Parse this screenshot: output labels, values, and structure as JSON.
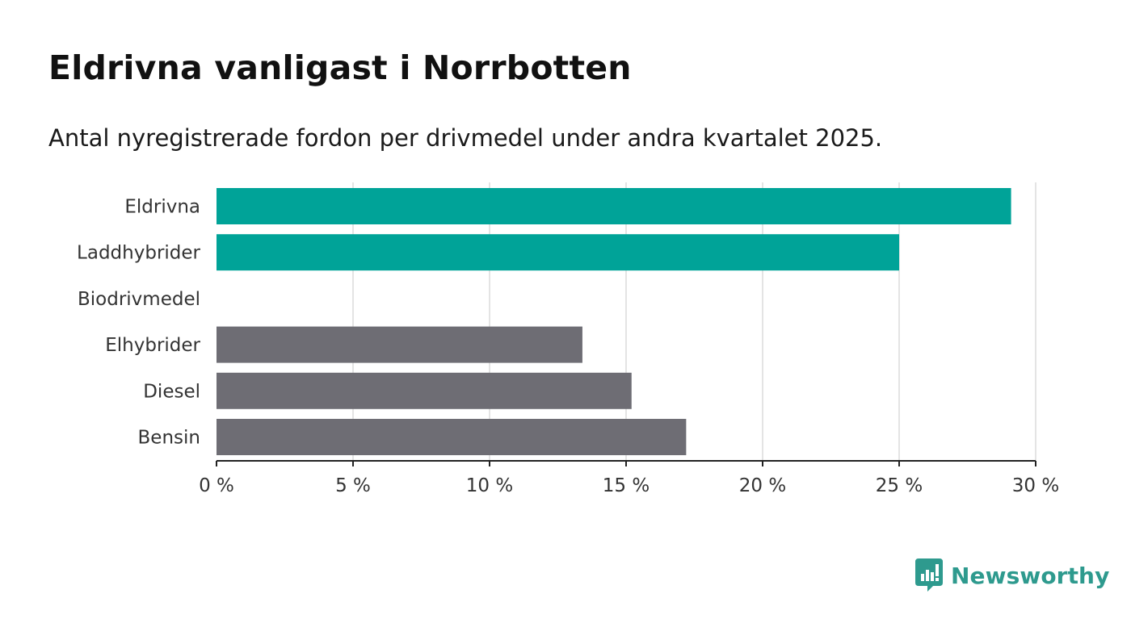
{
  "chart_data": {
    "type": "bar",
    "orientation": "horizontal",
    "title": "Eldrivna vanligast i Norrbotten",
    "subtitle": "Antal nyregistrerade fordon per drivmedel under andra kvartalet 2025.",
    "categories": [
      "Eldrivna",
      "Laddhybrider",
      "Biodrivmedel",
      "Elhybrider",
      "Diesel",
      "Bensin"
    ],
    "values": [
      29.1,
      25.0,
      0,
      13.4,
      15.2,
      17.2
    ],
    "colors": [
      "#00a398",
      "#00a398",
      "#6e6d74",
      "#6e6d74",
      "#6e6d74",
      "#6e6d74"
    ],
    "xlim": [
      0,
      30
    ],
    "x_ticks": [
      0,
      5,
      10,
      15,
      20,
      25,
      30
    ],
    "x_tick_labels": [
      "0 %",
      "5 %",
      "10 %",
      "15 %",
      "20 %",
      "25 %",
      "30 %"
    ],
    "xlabel": "",
    "ylabel": "",
    "grid": "vertical"
  },
  "brand": {
    "name": "Newsworthy",
    "icon": "newsworthy-logo-icon",
    "color": "#2e9a8e"
  }
}
